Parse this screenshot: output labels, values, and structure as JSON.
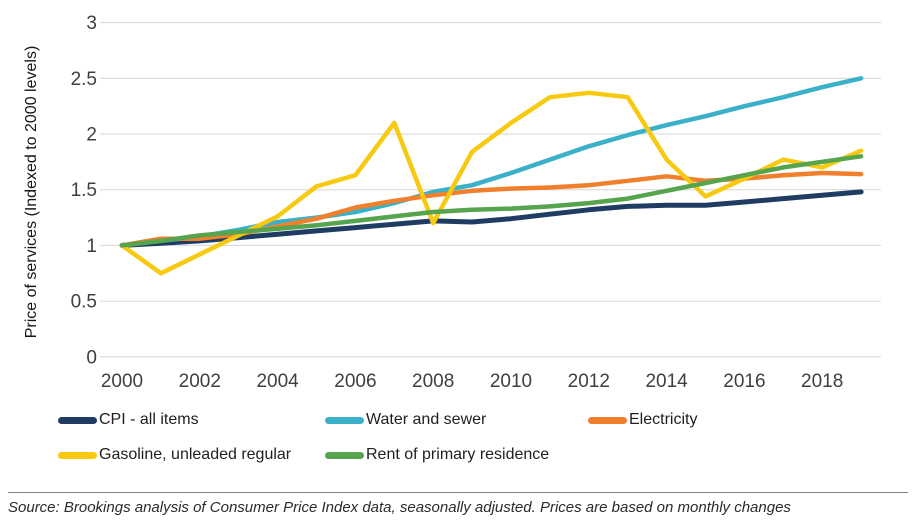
{
  "chart_data": {
    "type": "line",
    "title": "",
    "xlabel": "",
    "ylabel": "Price of services (Indexed to 2000 levels)",
    "x": [
      2000,
      2001,
      2002,
      2003,
      2004,
      2005,
      2006,
      2007,
      2008,
      2009,
      2010,
      2011,
      2012,
      2013,
      2014,
      2015,
      2016,
      2017,
      2018,
      2019
    ],
    "xticks": [
      2000,
      2002,
      2004,
      2006,
      2008,
      2010,
      2012,
      2014,
      2016,
      2018
    ],
    "yticks": [
      0,
      0.5,
      1,
      1.5,
      2,
      2.5,
      3
    ],
    "xlim": [
      2000,
      2019
    ],
    "ylim": [
      0,
      3
    ],
    "grid": "horizontal",
    "legend_position": "bottom",
    "series": [
      {
        "name": "CPI - all items",
        "color": "#1f3c63",
        "values": [
          1.0,
          1.02,
          1.04,
          1.07,
          1.1,
          1.13,
          1.16,
          1.19,
          1.22,
          1.21,
          1.24,
          1.28,
          1.32,
          1.35,
          1.36,
          1.36,
          1.39,
          1.42,
          1.45,
          1.48
        ]
      },
      {
        "name": "Water and sewer",
        "color": "#3bb0c9",
        "values": [
          1.0,
          1.04,
          1.08,
          1.14,
          1.21,
          1.25,
          1.3,
          1.38,
          1.48,
          1.54,
          1.65,
          1.77,
          1.89,
          1.99,
          2.08,
          2.16,
          2.25,
          2.33,
          2.42,
          2.5
        ]
      },
      {
        "name": "Electricity",
        "color": "#f0802b",
        "values": [
          1.0,
          1.06,
          1.06,
          1.1,
          1.17,
          1.24,
          1.34,
          1.4,
          1.45,
          1.49,
          1.51,
          1.52,
          1.54,
          1.58,
          1.62,
          1.58,
          1.6,
          1.63,
          1.65,
          1.64
        ]
      },
      {
        "name": "Gasoline, unleaded regular",
        "color": "#f7ca11",
        "values": [
          1.0,
          0.75,
          0.92,
          1.09,
          1.26,
          1.53,
          1.63,
          2.1,
          1.2,
          1.84,
          2.1,
          2.33,
          2.37,
          2.33,
          1.77,
          1.44,
          1.6,
          1.77,
          1.7,
          1.85
        ]
      },
      {
        "name": "Rent of primary residence",
        "color": "#57a44e",
        "values": [
          1.0,
          1.04,
          1.09,
          1.12,
          1.15,
          1.18,
          1.22,
          1.26,
          1.3,
          1.32,
          1.33,
          1.35,
          1.38,
          1.42,
          1.49,
          1.56,
          1.63,
          1.7,
          1.75,
          1.8
        ]
      }
    ]
  },
  "source": {
    "text": "Source: Brookings analysis of Consumer Price Index data, seasonally adjusted. Prices are based on monthly changes"
  }
}
